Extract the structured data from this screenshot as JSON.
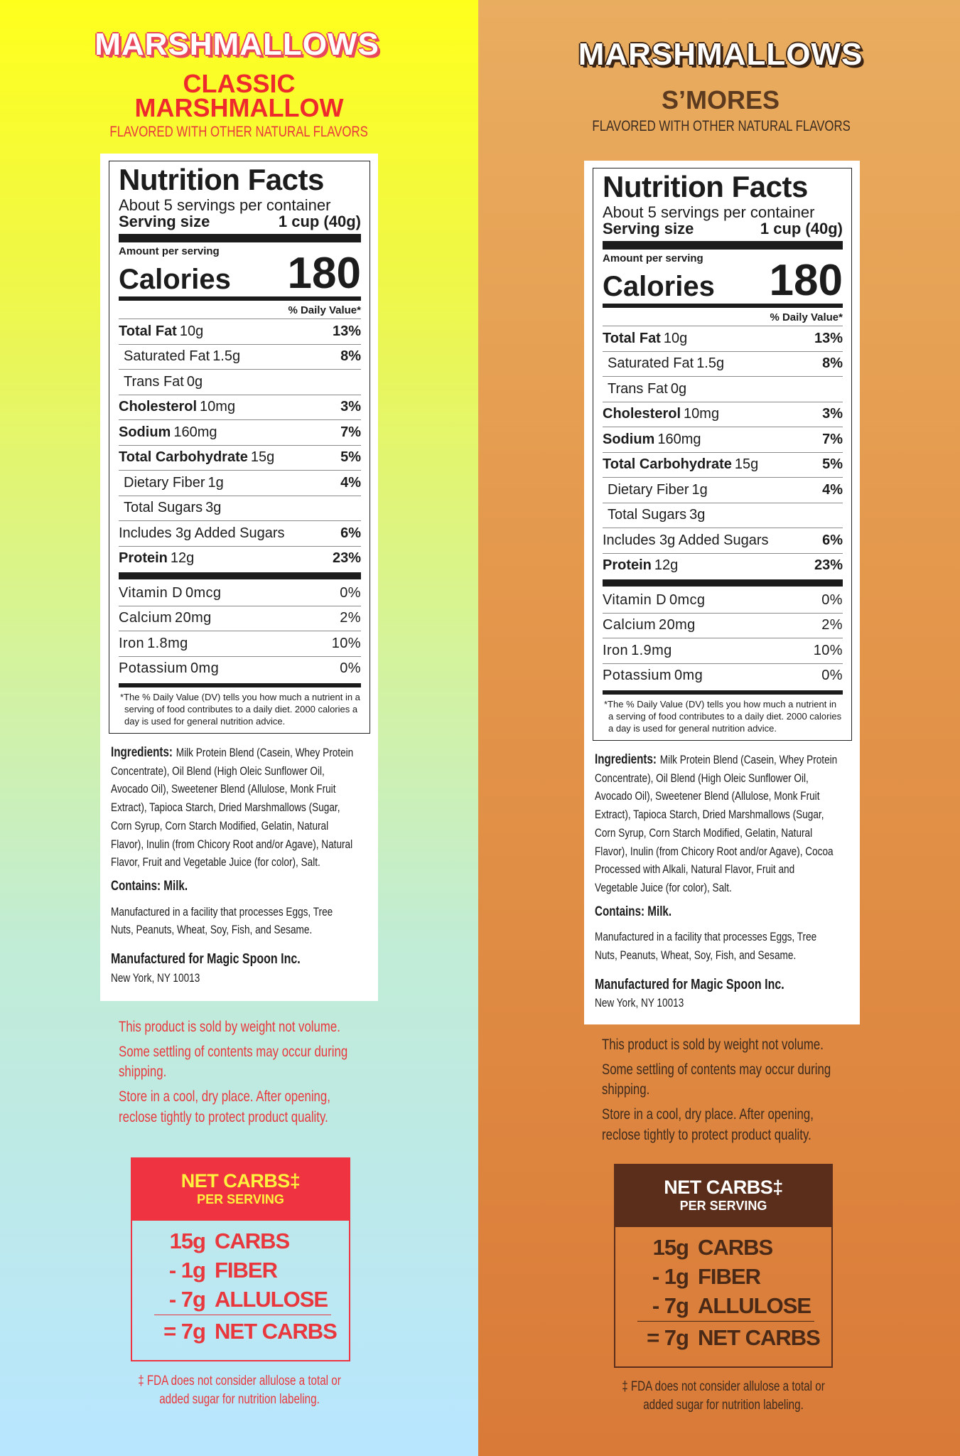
{
  "panels": [
    {
      "brand": "MARSHMALLOWS",
      "flavor": [
        "CLASSIC",
        "MARSHMALLOW"
      ],
      "flavor_note": "FLAVORED WITH OTHER NATURAL FLAVORS",
      "nutrition": {
        "title": "Nutrition Facts",
        "servings": "About 5 servings per container",
        "serving_size_label": "Serving size",
        "serving_size": "1 cup (40g)",
        "amount_label": "Amount per serving",
        "calories_label": "Calories",
        "calories": 180,
        "dv_header": "% Daily Value*",
        "nutrients": [
          {
            "name": "Total Fat",
            "amount": "10g",
            "dv": "13%",
            "sub": [
              {
                "name": "Saturated Fat",
                "amount": "1.5g",
                "dv": "8%"
              },
              {
                "name": "Trans Fat",
                "amount": "0g"
              }
            ]
          },
          {
            "name": "Cholesterol",
            "amount": "10mg",
            "dv": "3%"
          },
          {
            "name": "Sodium",
            "amount": "160mg",
            "dv": "7%"
          },
          {
            "name": "Total Carbohydrate",
            "amount": "15g",
            "dv": "5%",
            "sub": [
              {
                "name": "Dietary Fiber",
                "amount": "1g",
                "dv": "4%"
              },
              {
                "name": "Total Sugars",
                "amount": "3g",
                "sub": [
                  {
                    "name": "Includes 3g Added Sugars",
                    "dv": "6%"
                  }
                ]
              }
            ]
          },
          {
            "name": "Protein",
            "amount": "12g",
            "dv": "23%"
          }
        ],
        "vitamins": [
          {
            "name": "Vitamin D",
            "amount": "0mcg",
            "dv": "0%"
          },
          {
            "name": "Calcium",
            "amount": "20mg",
            "dv": "2%"
          },
          {
            "name": "Iron",
            "amount": "1.8mg",
            "dv": "10%"
          },
          {
            "name": "Potassium",
            "amount": "0mg",
            "dv": "0%"
          }
        ],
        "footnote": "*The % Daily Value (DV) tells you how much a nutrient in a serving of food contributes to a daily diet. 2000 calories a day is used for general nutrition advice."
      },
      "ingredients_label": "Ingredients:",
      "ingredients": "Milk Protein Blend (Casein, Whey Protein Concentrate), Oil Blend (High Oleic Sunflower Oil, Avocado Oil), Sweetener Blend (Allulose, Monk Fruit Extract), Tapioca Starch, Dried Marshmallows (Sugar, Corn Syrup, Corn Starch Modified, Gelatin, Natural Flavor), Inulin (from Chicory Root and/or Agave), Natural Flavor, Fruit and Vegetable Juice (for color), Salt.",
      "contains": "Contains: Milk.",
      "facility": "Manufactured in a facility that processes Eggs, Tree Nuts, Peanuts, Wheat, Soy, Fish, and Sesame.",
      "manufacturer": "Manufactured for Magic Spoon Inc.",
      "address": "New York, NY 10013",
      "notes": [
        "This product is sold by weight not volume.",
        "Some settling of contents may occur during shipping.",
        "Store in a cool, dry place. After opening, reclose tightly to protect product quality."
      ],
      "net_carbs": {
        "title": "NET CARBS‡",
        "subtitle": "PER SERVING",
        "rows": [
          {
            "amount": "15g",
            "label": "CARBS"
          },
          {
            "amount": "- 1g",
            "label": "FIBER"
          },
          {
            "amount": "- 7g",
            "label": "ALLULOSE"
          }
        ],
        "total": {
          "amount": "= 7g",
          "label": "NET CARBS"
        }
      },
      "disclaimer": "‡ FDA does not consider allulose a total or added sugar for nutrition labeling."
    },
    {
      "brand": "MARSHMALLOWS",
      "flavor": [
        "S’MORES"
      ],
      "flavor_note": "FLAVORED WITH OTHER NATURAL FLAVORS",
      "nutrition": {
        "title": "Nutrition Facts",
        "servings": "About 5 servings per container",
        "serving_size_label": "Serving size",
        "serving_size": "1 cup (40g)",
        "amount_label": "Amount per serving",
        "calories_label": "Calories",
        "calories": 180,
        "dv_header": "% Daily Value*",
        "nutrients": [
          {
            "name": "Total Fat",
            "amount": "10g",
            "dv": "13%",
            "sub": [
              {
                "name": "Saturated Fat",
                "amount": "1.5g",
                "dv": "8%"
              },
              {
                "name": "Trans Fat",
                "amount": "0g"
              }
            ]
          },
          {
            "name": "Cholesterol",
            "amount": "10mg",
            "dv": "3%"
          },
          {
            "name": "Sodium",
            "amount": "160mg",
            "dv": "7%"
          },
          {
            "name": "Total Carbohydrate",
            "amount": "15g",
            "dv": "5%",
            "sub": [
              {
                "name": "Dietary Fiber",
                "amount": "1g",
                "dv": "4%"
              },
              {
                "name": "Total Sugars",
                "amount": "3g",
                "sub": [
                  {
                    "name": "Includes 3g Added Sugars",
                    "dv": "6%"
                  }
                ]
              }
            ]
          },
          {
            "name": "Protein",
            "amount": "12g",
            "dv": "23%"
          }
        ],
        "vitamins": [
          {
            "name": "Vitamin D",
            "amount": "0mcg",
            "dv": "0%"
          },
          {
            "name": "Calcium",
            "amount": "20mg",
            "dv": "2%"
          },
          {
            "name": "Iron",
            "amount": "1.9mg",
            "dv": "10%"
          },
          {
            "name": "Potassium",
            "amount": "0mg",
            "dv": "0%"
          }
        ],
        "footnote": "*The % Daily Value (DV) tells you how much a nutrient in a serving of food contributes to a daily diet. 2000 calories a day is used for general nutrition advice."
      },
      "ingredients_label": "Ingredients:",
      "ingredients": "Milk Protein Blend (Casein, Whey Protein Concentrate), Oil Blend (High Oleic Sunflower Oil, Avocado Oil), Sweetener Blend (Allulose, Monk Fruit Extract), Tapioca Starch, Dried Marshmallows (Sugar, Corn Syrup, Corn Starch Modified, Gelatin, Natural Flavor), Inulin (from Chicory Root and/or Agave), Cocoa Processed with Alkali, Natural Flavor, Fruit and Vegetable Juice (for color), Salt.",
      "contains": "Contains: Milk.",
      "facility": "Manufactured in a facility that processes Eggs, Tree Nuts, Peanuts, Wheat, Soy, Fish, and Sesame.",
      "manufacturer": "Manufactured for Magic Spoon Inc.",
      "address": "New York, NY 10013",
      "notes": [
        "This product is sold by weight not volume.",
        "Some settling of contents may occur during shipping.",
        "Store in a cool, dry place. After opening, reclose tightly to protect product quality."
      ],
      "net_carbs": {
        "title": "NET CARBS‡",
        "subtitle": "PER SERVING",
        "rows": [
          {
            "amount": "15g",
            "label": "CARBS"
          },
          {
            "amount": "- 1g",
            "label": "FIBER"
          },
          {
            "amount": "- 7g",
            "label": "ALLULOSE"
          }
        ],
        "total": {
          "amount": "= 7g",
          "label": "NET CARBS"
        }
      },
      "disclaimer": "‡ FDA does not consider allulose a total or added sugar for nutrition labeling."
    }
  ]
}
